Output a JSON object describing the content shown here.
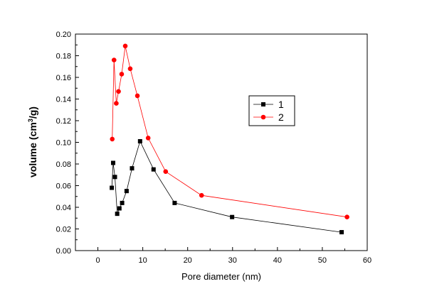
{
  "chart_data": {
    "type": "line",
    "title": "",
    "xlabel": "Pore diameter (nm)",
    "ylabel": {
      "prefix": "volume (cm",
      "superscript": "3",
      "suffix": "/g)"
    },
    "xlim": [
      -5,
      60
    ],
    "ylim": [
      0,
      0.2
    ],
    "xticks": [
      0,
      10,
      20,
      30,
      40,
      50,
      60
    ],
    "xtick_labels": [
      "0",
      "10",
      "20",
      "30",
      "40",
      "50",
      "60"
    ],
    "yticks": [
      0,
      0.02,
      0.04,
      0.06,
      0.08,
      0.1,
      0.12,
      0.14,
      0.16,
      0.18,
      0.2
    ],
    "ytick_labels": [
      "0.00",
      "0.02",
      "0.04",
      "0.06",
      "0.08",
      "0.10",
      "0.12",
      "0.14",
      "0.16",
      "0.18",
      "0.20"
    ],
    "grid": false,
    "legend_position": "right-upper",
    "series": [
      {
        "name": "1",
        "color": "#000000",
        "marker": "square",
        "x": [
          3.1,
          3.4,
          3.8,
          4.3,
          4.8,
          5.4,
          6.4,
          7.6,
          9.4,
          12.4,
          17.1,
          29.9,
          54.3
        ],
        "y": [
          0.058,
          0.081,
          0.068,
          0.034,
          0.039,
          0.044,
          0.055,
          0.076,
          0.101,
          0.075,
          0.044,
          0.031,
          0.017
        ]
      },
      {
        "name": "2",
        "color": "#ff0000",
        "marker": "circle",
        "x": [
          3.2,
          3.6,
          4.1,
          4.6,
          5.3,
          6.1,
          7.2,
          8.8,
          11.2,
          15.1,
          23.1,
          55.5
        ],
        "y": [
          0.103,
          0.176,
          0.136,
          0.147,
          0.163,
          0.189,
          0.168,
          0.143,
          0.104,
          0.073,
          0.051,
          0.031
        ]
      }
    ]
  }
}
